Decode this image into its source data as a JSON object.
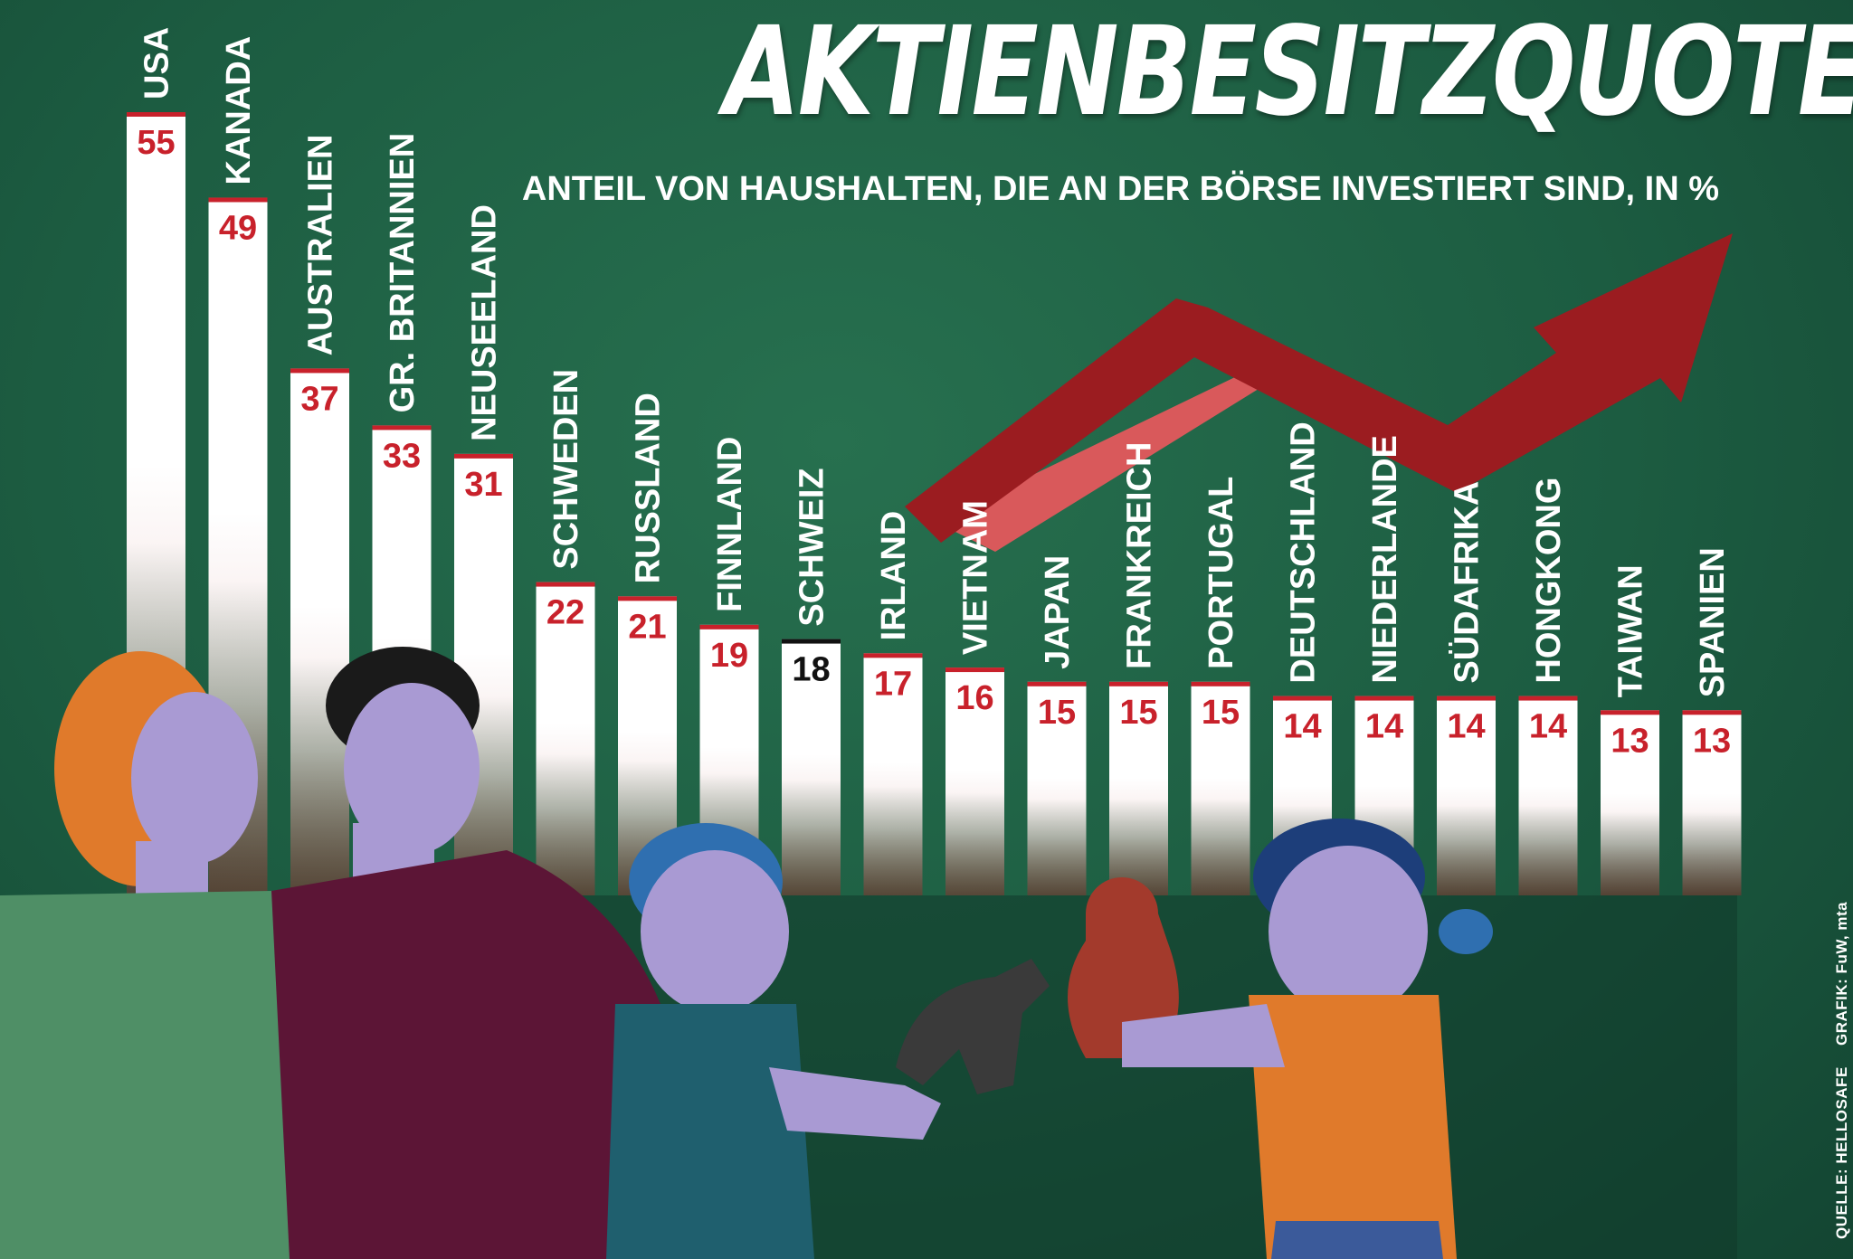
{
  "header": {
    "title": "AKTIENBESITZQUOTEN",
    "subtitle": "ANTEIL VON HAUSHALTEN, DIE AN DER BÖRSE INVESTIERT SIND, IN %"
  },
  "footer": {
    "source": "QUELLE: HELLOSAFE",
    "credit": "GRAFIK: FuW, mta"
  },
  "colors": {
    "accent": "#c8212b",
    "arrow": "#9b1c20",
    "arrow_light": "#d9595b",
    "background": "#1d6047",
    "bar": "#ffffff",
    "switzerland_accent": "#111111"
  },
  "chart_data": {
    "type": "bar",
    "title": "AKTIENBESITZQUOTEN",
    "subtitle": "ANTEIL VON HAUSHALTEN, DIE AN DER BÖRSE INVESTIERT SIND, IN %",
    "xlabel": "",
    "ylabel": "",
    "ylim": [
      0,
      60
    ],
    "grid": false,
    "categories": [
      "USA",
      "KANADA",
      "AUSTRALIEN",
      "GR. BRITANNIEN",
      "NEUSEELAND",
      "SCHWEDEN",
      "RUSSLAND",
      "FINNLAND",
      "SCHWEIZ",
      "IRLAND",
      "VIETNAM",
      "JAPAN",
      "FRANKREICH",
      "PORTUGAL",
      "DEUTSCHLAND",
      "NIEDERLANDE",
      "SÜDAFRIKA",
      "HONGKONG",
      "TAIWAN",
      "SPANIEN"
    ],
    "values": [
      55,
      49,
      37,
      33,
      31,
      22,
      21,
      19,
      18,
      17,
      16,
      15,
      15,
      15,
      14,
      14,
      14,
      14,
      13,
      13
    ],
    "highlight": "SCHWEIZ"
  }
}
